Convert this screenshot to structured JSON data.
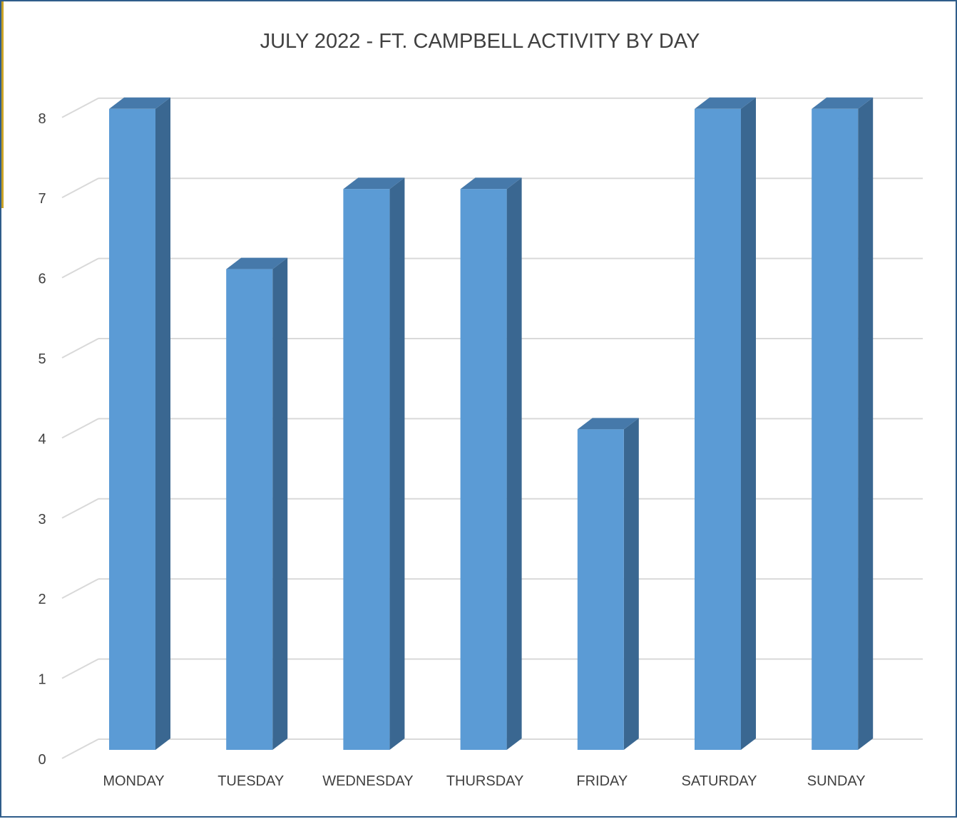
{
  "chart_data": {
    "type": "bar",
    "title": "JULY 2022 - FT. CAMPBELL ACTIVITY BY DAY",
    "categories": [
      "MONDAY",
      "TUESDAY",
      "WEDNESDAY",
      "THURSDAY",
      "FRIDAY",
      "SATURDAY",
      "SUNDAY"
    ],
    "values": [
      8,
      6,
      7,
      7,
      4,
      8,
      8
    ],
    "xlabel": "",
    "ylabel": "",
    "ylim": [
      0,
      8
    ],
    "yticks": [
      "0",
      "1",
      "2",
      "3",
      "4",
      "5",
      "6",
      "7",
      "8"
    ],
    "grid": true,
    "legend": "none",
    "style": "3d-column"
  },
  "colors": {
    "bar_front": "#5b9bd5",
    "bar_side": "#3a6791",
    "bar_top": "#4679aa",
    "gridline": "#d9d9d9",
    "frame_border": "#2f5d8a",
    "accent": "#c9a227"
  }
}
